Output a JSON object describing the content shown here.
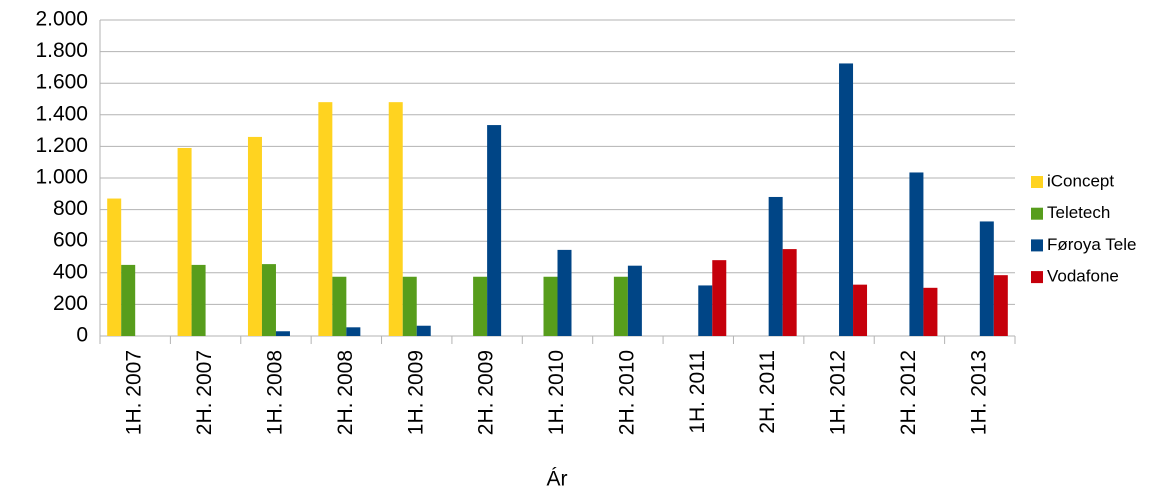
{
  "chart_data": {
    "type": "bar",
    "x_label": "Ár",
    "categories": [
      "1H. 2007",
      "2H. 2007",
      "1H. 2008",
      "2H. 2008",
      "1H. 2009",
      "2H. 2009",
      "1H. 2010",
      "2H. 2010",
      "1H. 2011",
      "2H. 2011",
      "1H. 2012",
      "2H. 2012",
      "1H. 2013"
    ],
    "series": [
      {
        "name": "iConcept",
        "color": "#ffd320",
        "values": [
          870,
          1190,
          1260,
          1480,
          1480,
          null,
          null,
          null,
          null,
          null,
          null,
          null,
          null
        ]
      },
      {
        "name": "Teletech",
        "color": "#579d1c",
        "values": [
          450,
          450,
          455,
          375,
          375,
          375,
          375,
          375,
          null,
          null,
          null,
          null,
          null
        ]
      },
      {
        "name": "Føroya Tele",
        "color": "#004586",
        "values": [
          null,
          null,
          30,
          55,
          65,
          1335,
          545,
          445,
          320,
          880,
          1725,
          1035,
          725
        ]
      },
      {
        "name": "Vodafone",
        "color": "#c5000b",
        "values": [
          null,
          null,
          null,
          null,
          null,
          null,
          null,
          null,
          480,
          550,
          325,
          305,
          385
        ]
      }
    ],
    "ylim": [
      0,
      2000
    ],
    "yticks": [
      0,
      200,
      400,
      600,
      800,
      {
        "value": 1000,
        "label": "1.000"
      },
      {
        "value": 1200,
        "label": "1.200"
      },
      {
        "value": 1400,
        "label": "1.400"
      },
      {
        "value": 1600,
        "label": "1.600"
      },
      {
        "value": 1800,
        "label": "1.800"
      },
      {
        "value": 2000,
        "label": "2.000"
      }
    ],
    "grid": true,
    "legend": "right"
  }
}
